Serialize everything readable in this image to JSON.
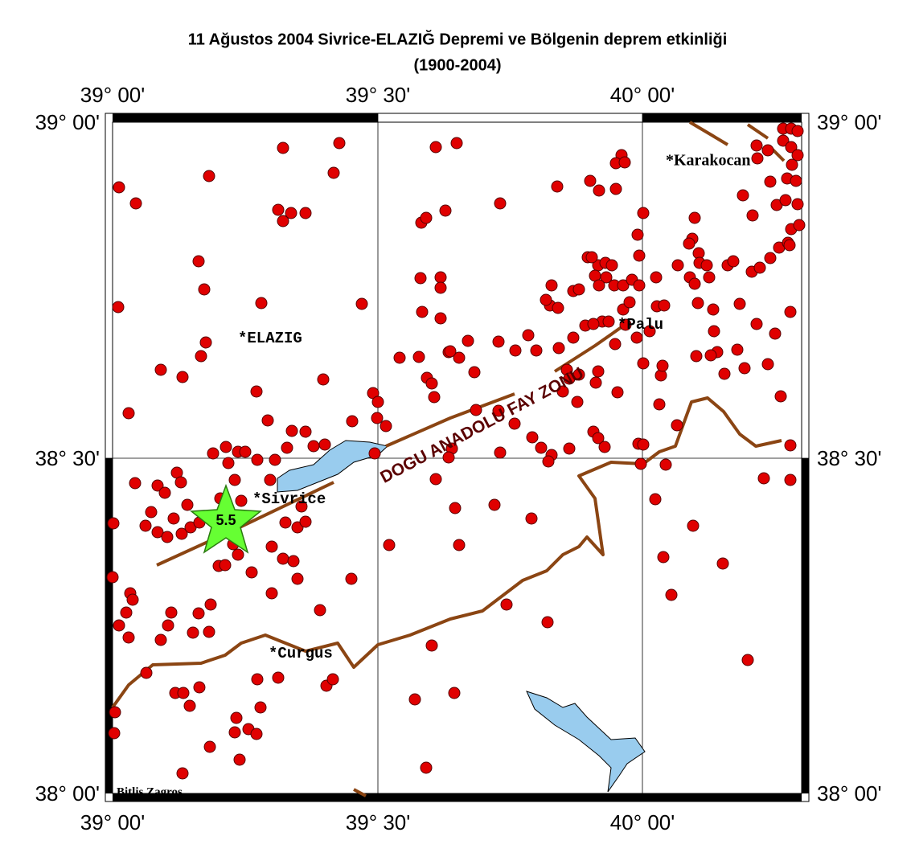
{
  "header": {
    "title": "11 Ağustos 2004 Sivrice-ELAZIĞ Depremi ve Bölgenin deprem etkinliği",
    "subtitle": "(1900-2004)"
  },
  "map": {
    "x_labels": [
      "39° 00'",
      "39° 30'",
      "40° 00'"
    ],
    "y_labels": [
      "39° 00'",
      "38° 30'",
      "38° 00'"
    ],
    "places": [
      "*ELAZIG",
      "*Sivrice",
      "*Palu",
      "*Karakocan",
      "*Curgus"
    ],
    "fault_label": "DOGU ANADOLU FAY ZONU",
    "event_magnitude": 5.5,
    "region_note": "Bitlis Zagros"
  }
}
